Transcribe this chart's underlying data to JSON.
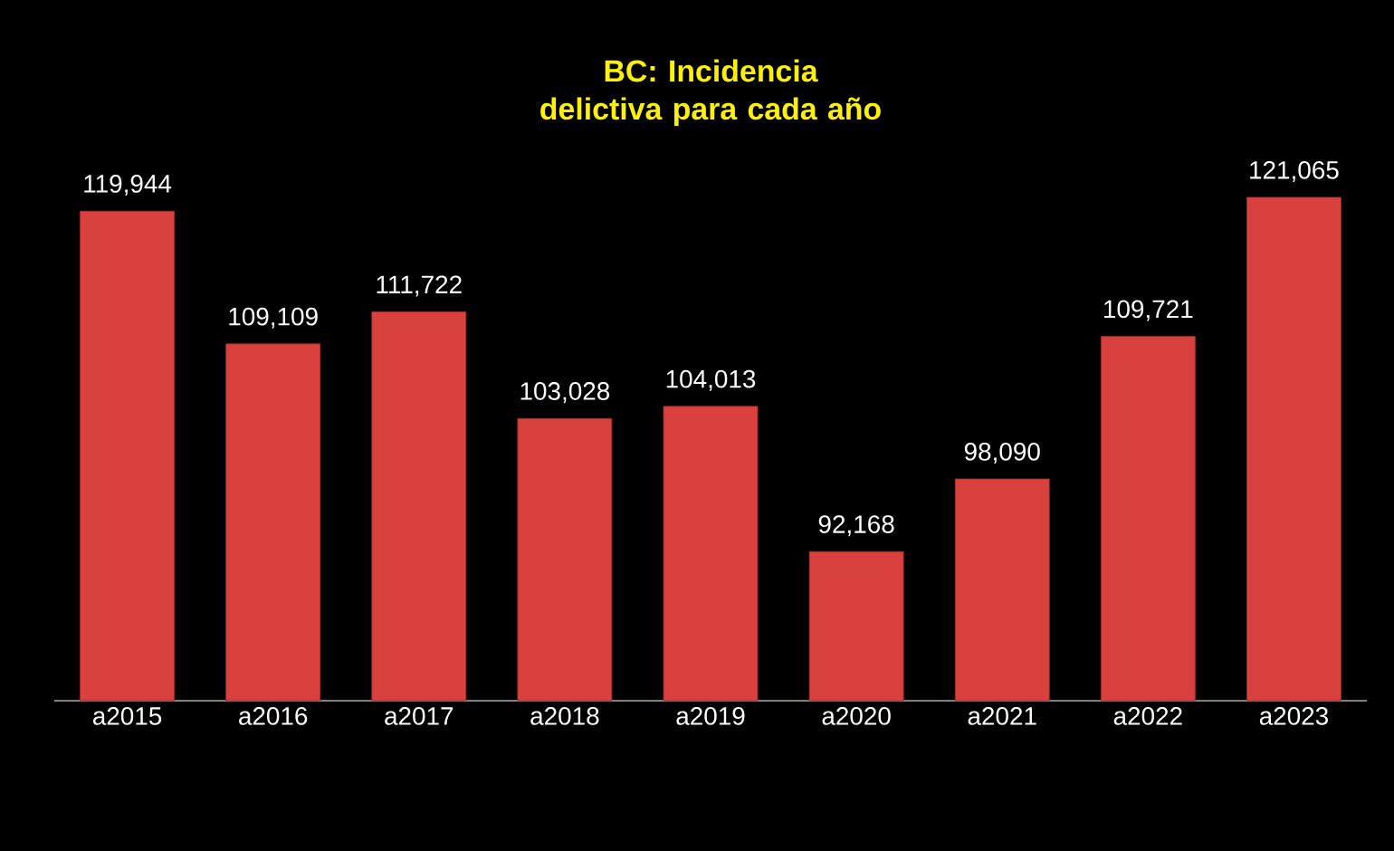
{
  "chart_data": {
    "type": "bar",
    "title": "BC: Incidencia delictiva para cada año",
    "categories": [
      "a2015",
      "a2016",
      "a2017",
      "a2018",
      "a2019",
      "a2020",
      "a2021",
      "a2022",
      "a2023"
    ],
    "values": [
      119944,
      109109,
      111722,
      103028,
      104013,
      92168,
      98090,
      109721,
      121065
    ],
    "value_labels": [
      "119,944",
      "109,109",
      "111,722",
      "103,028",
      "104,013",
      "92,168",
      "98,090",
      "109,721",
      "121,065"
    ],
    "color": "#d9413f",
    "ylim": [
      80000,
      121065
    ],
    "tick_labels": "x",
    "grid": false
  }
}
